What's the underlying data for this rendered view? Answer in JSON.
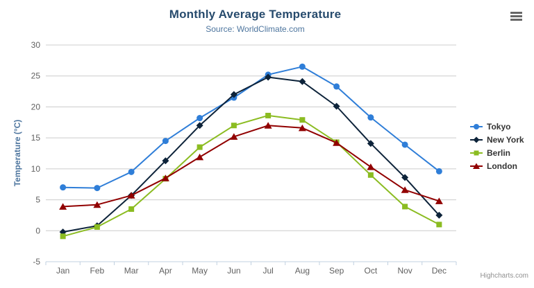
{
  "chart_data": {
    "type": "line",
    "title": "Monthly Average Temperature",
    "subtitle": "Source: WorldClimate.com",
    "xlabel": "",
    "ylabel": "Temperature (°C)",
    "ylim": [
      -5,
      30
    ],
    "tick_interval": 5,
    "grid": true,
    "legend_position": "right",
    "categories": [
      "Jan",
      "Feb",
      "Mar",
      "Apr",
      "May",
      "Jun",
      "Jul",
      "Aug",
      "Sep",
      "Oct",
      "Nov",
      "Dec"
    ],
    "series": [
      {
        "name": "Tokyo",
        "symbol": "circle",
        "color": "#2f7ed8",
        "values": [
          7.0,
          6.9,
          9.5,
          14.5,
          18.2,
          21.5,
          25.2,
          26.5,
          23.3,
          18.3,
          13.9,
          9.6
        ]
      },
      {
        "name": "New York",
        "symbol": "diamond",
        "color": "#0d233a",
        "values": [
          -0.2,
          0.8,
          5.7,
          11.3,
          17.0,
          22.0,
          24.8,
          24.1,
          20.1,
          14.1,
          8.6,
          2.5
        ]
      },
      {
        "name": "Berlin",
        "symbol": "square",
        "color": "#8bbc21",
        "values": [
          -0.9,
          0.6,
          3.5,
          8.4,
          13.5,
          17.0,
          18.6,
          17.9,
          14.3,
          9.0,
          3.9,
          1.0
        ]
      },
      {
        "name": "London",
        "symbol": "triangle",
        "color": "#910000",
        "values": [
          3.9,
          4.2,
          5.7,
          8.5,
          11.9,
          15.2,
          17.0,
          16.6,
          14.2,
          10.3,
          6.6,
          4.8
        ]
      }
    ],
    "colors": {
      "title": "#274b6d",
      "subtitle": "#4d759e",
      "axis_title": "#4d759e",
      "tick_label": "#606060",
      "grid_line": "#cccccc",
      "axis_line": "#c0d0e0",
      "legend_text": "#333333",
      "credits": "#909090"
    }
  },
  "credits": {
    "label": "Highcharts.com"
  }
}
